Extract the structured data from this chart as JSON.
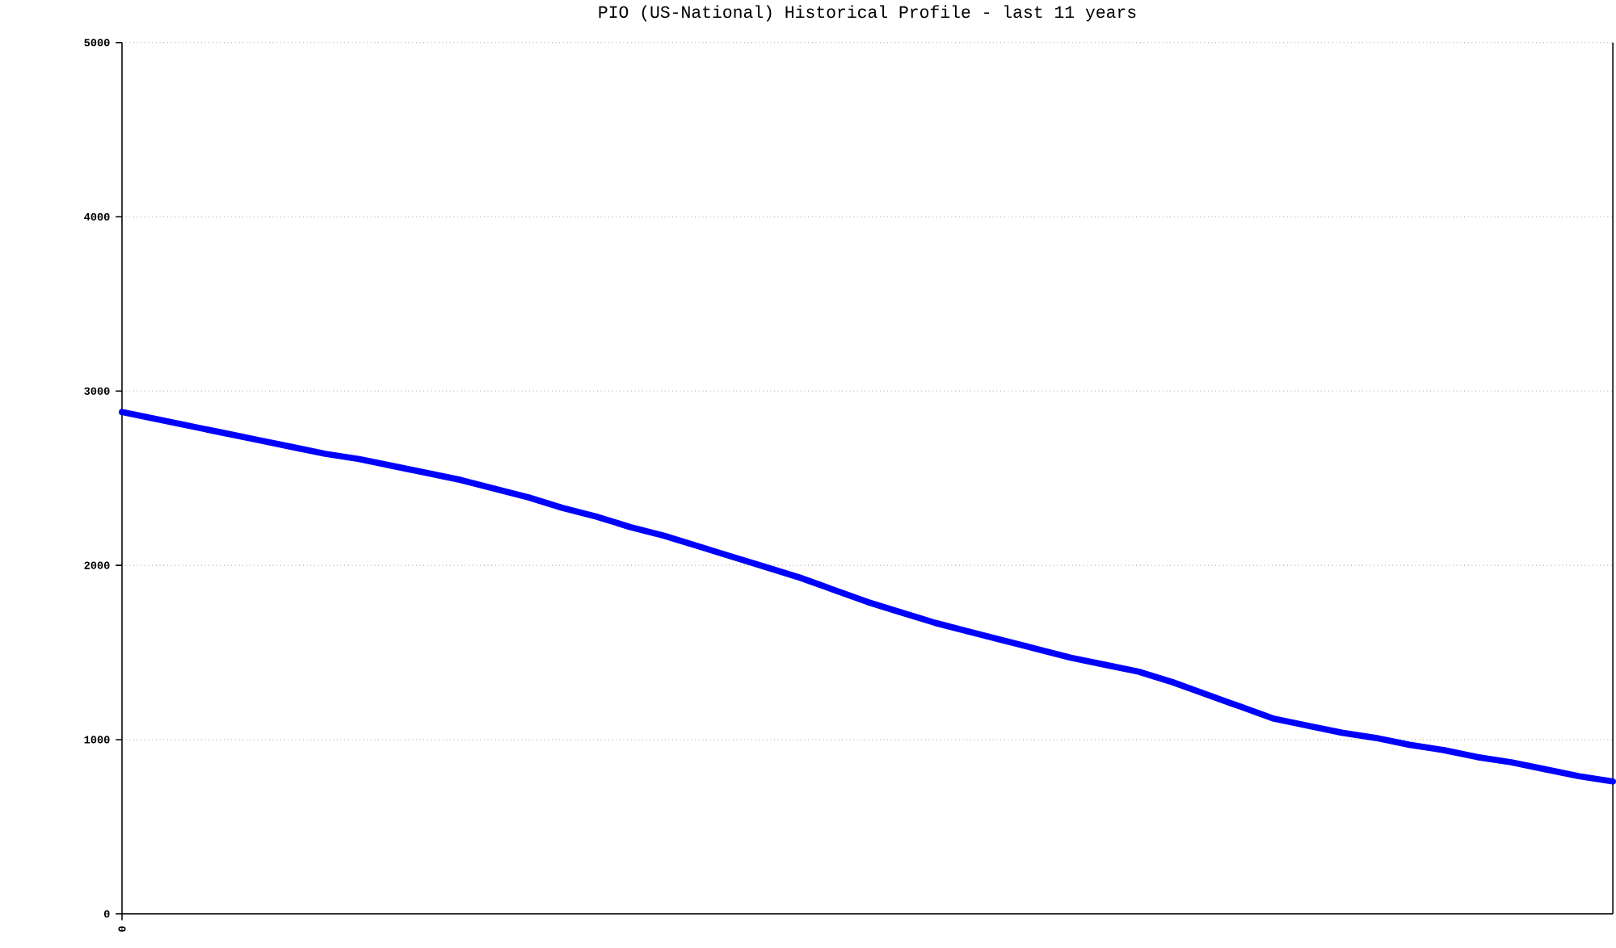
{
  "chart_data": {
    "type": "line",
    "title": "PIO (US-National) Historical Profile - last 11 years",
    "categories": [
      "0",
      null,
      null,
      null,
      null,
      null,
      null,
      null,
      null,
      null,
      null,
      null,
      null,
      null,
      null,
      null,
      null,
      null,
      null,
      null,
      null,
      null,
      null,
      null,
      null,
      null,
      null,
      null,
      null,
      null,
      null,
      null,
      null,
      null,
      null,
      null,
      null,
      null,
      null,
      null,
      null,
      null,
      null,
      null,
      null
    ],
    "series": [
      {
        "color": "#0000ff",
        "values": [
          2880,
          2840,
          2800,
          2760,
          2720,
          2680,
          2640,
          2610,
          2570,
          2530,
          2490,
          2440,
          2390,
          2330,
          2280,
          2220,
          2170,
          2110,
          2050,
          1990,
          1930,
          1860,
          1790,
          1730,
          1670,
          1620,
          1570,
          1520,
          1470,
          1430,
          1390,
          1330,
          1260,
          1190,
          1120,
          1080,
          1040,
          1010,
          970,
          940,
          900,
          870,
          830,
          790,
          760
        ]
      }
    ],
    "ylim": [
      0,
      5000
    ],
    "yticks": [
      0,
      1000,
      2000,
      3000,
      4000,
      5000
    ],
    "grid": "y",
    "marker": "none",
    "line_style": "solid"
  }
}
